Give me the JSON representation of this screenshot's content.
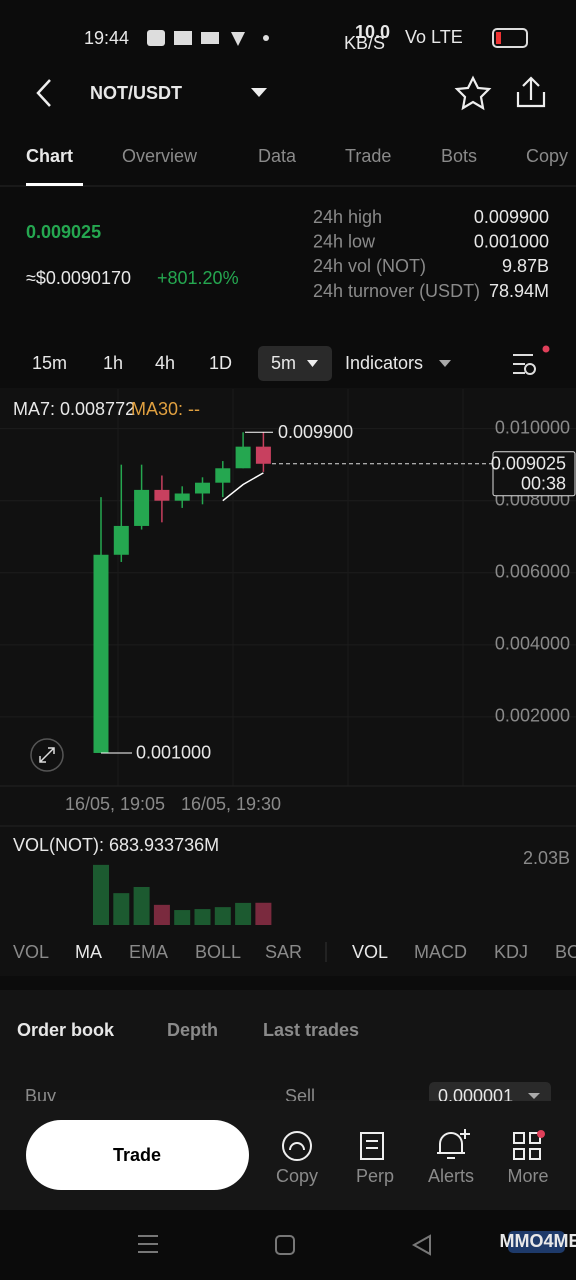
{
  "status_bar": {
    "time": "19:44",
    "net_speed": "10.0",
    "net_unit": "KB/S",
    "volte": "Vo LTE"
  },
  "header": {
    "pair": "NOT/USDT"
  },
  "tabs": [
    "Chart",
    "Overview",
    "Data",
    "Trade",
    "Bots",
    "Copy"
  ],
  "price": {
    "last": "0.009025",
    "usd": "≈$0.0090170",
    "change": "+801.20%"
  },
  "stats": [
    {
      "label": "24h high",
      "value": "0.009900"
    },
    {
      "label": "24h low",
      "value": "0.001000"
    },
    {
      "label": "24h vol (NOT)",
      "value": "9.87B"
    },
    {
      "label": "24h turnover (USDT)",
      "value": "78.94M"
    }
  ],
  "intervals": [
    "15m",
    "1h",
    "4h",
    "1D",
    "5m",
    "Indicators"
  ],
  "chart_data": {
    "type": "candlestick",
    "ma7_label": "MA7: 0.008772",
    "ma30_label": "MA30: --",
    "x_labels": [
      "16/05, 19:05",
      "16/05, 19:30"
    ],
    "open": [
      0.001,
      0.0065,
      0.0073,
      0.0083,
      0.008,
      0.0082,
      0.0085,
      0.0089,
      0.0095
    ],
    "high": [
      0.0081,
      0.009,
      0.009,
      0.0087,
      0.0084,
      0.00865,
      0.0091,
      0.0099,
      0.0099
    ],
    "low": [
      0.001,
      0.0063,
      0.0072,
      0.0074,
      0.0078,
      0.0079,
      0.0081,
      0.0089,
      0.0088
    ],
    "close": [
      0.0065,
      0.0073,
      0.0083,
      0.008,
      0.0082,
      0.0085,
      0.0089,
      0.0095,
      0.009025
    ],
    "ma7": [
      null,
      null,
      null,
      null,
      null,
      null,
      0.008,
      0.00845,
      0.008772
    ],
    "ylim": [
      0,
      0.0111
    ],
    "yticks": [
      {
        "value": 0.002,
        "label": "0.002000"
      },
      {
        "value": 0.004,
        "label": "0.004000"
      },
      {
        "value": 0.006,
        "label": "0.006000"
      },
      {
        "value": 0.008,
        "label": "0.008000"
      },
      {
        "value": 0.01,
        "label": "0.010000"
      }
    ],
    "up_color": "#25a750",
    "down_color": "#c8405f",
    "high_label": {
      "value": 0.0099,
      "label": "0.009900"
    },
    "low_label": {
      "value": 0.001,
      "label": "0.001000"
    },
    "last_price": {
      "value": 0.009025,
      "label": "0.009025"
    },
    "countdown": "00:38",
    "volume": {
      "title": "VOL(NOT): 683.933736M",
      "values": [
        1.85,
        0.98,
        1.17,
        0.62,
        0.46,
        0.49,
        0.55,
        0.68,
        0.684
      ],
      "ylim": [
        0,
        2.2
      ],
      "yticks": [
        {
          "value": 2.03,
          "label": "2.03B"
        }
      ]
    }
  },
  "indicator_tabs": {
    "main": [
      "VOL",
      "MA",
      "EMA",
      "BOLL",
      "SAR"
    ],
    "sub": [
      "VOL",
      "MACD",
      "KDJ",
      "BOLL"
    ]
  },
  "order_tabs": [
    "Order book",
    "Depth",
    "Last trades"
  ],
  "order_header": {
    "buy": "Buy",
    "sell": "Sell",
    "precision": "0.000001"
  },
  "bottom": {
    "trade": "Trade",
    "actions": [
      "Copy",
      "Perp",
      "Alerts",
      "More"
    ]
  },
  "watermark": "MMO4ME"
}
